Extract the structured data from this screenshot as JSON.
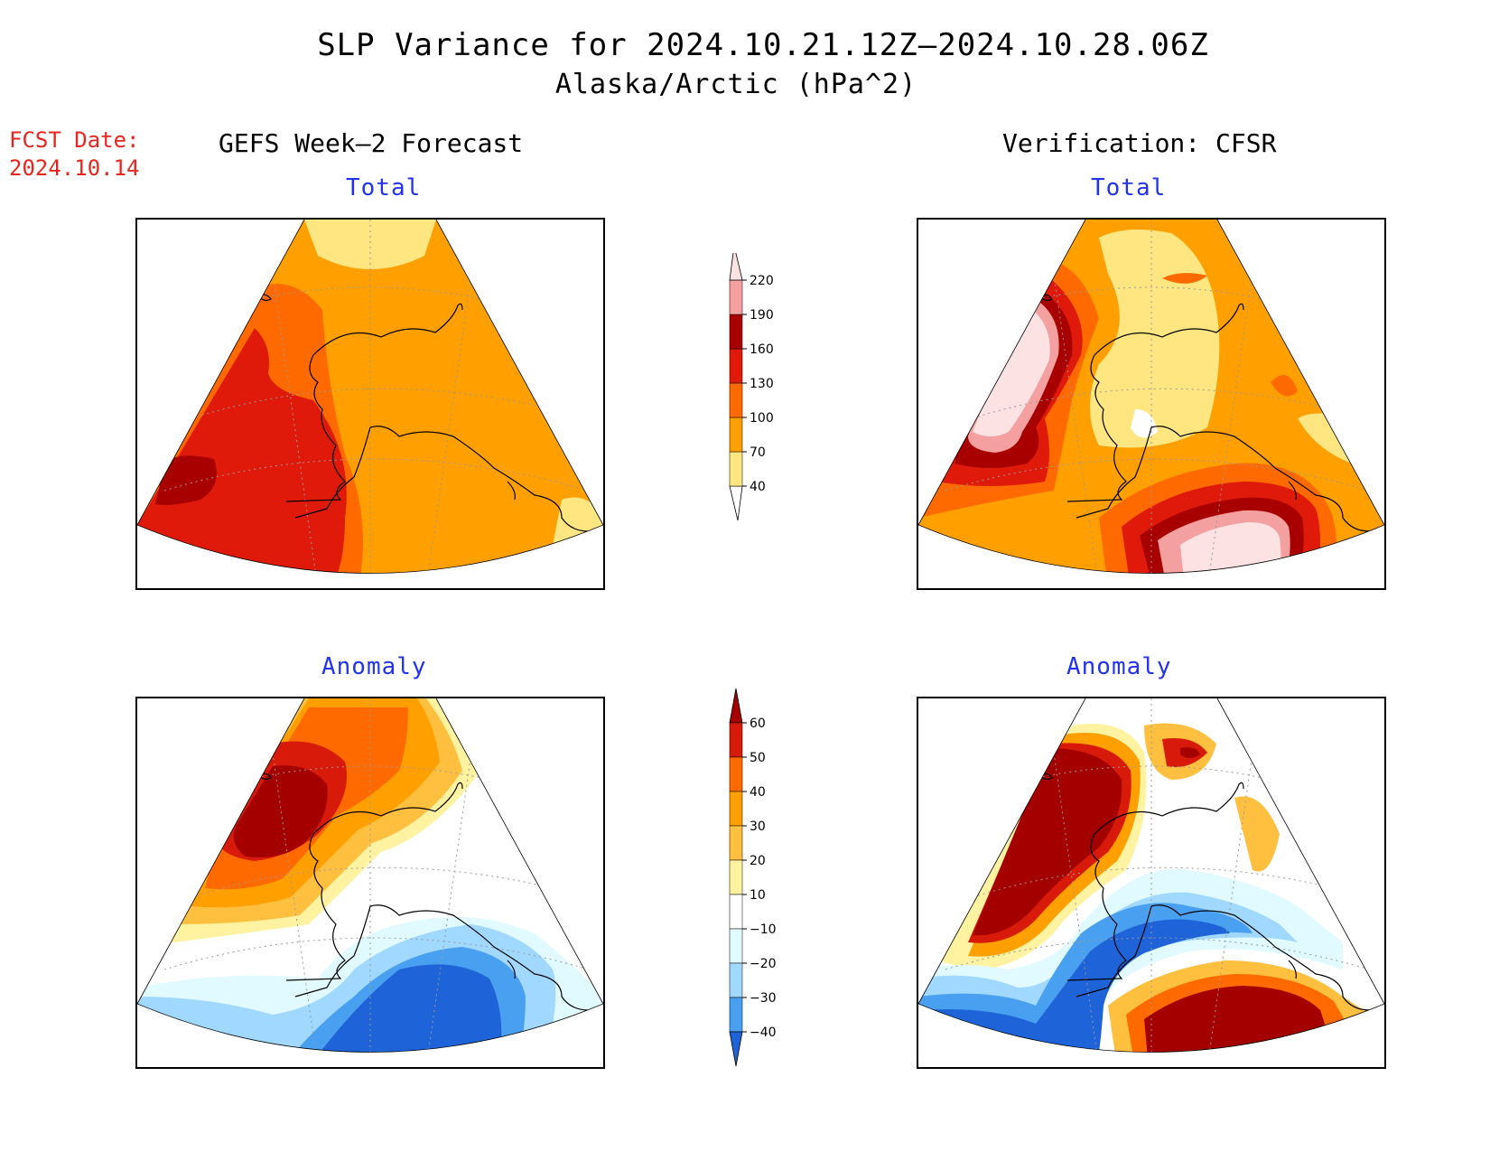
{
  "header": {
    "title": "SLP Variance for 2024.10.21.12Z–2024.10.28.06Z",
    "subtitle": "Alaska/Arctic (hPa^2)"
  },
  "forecast_date": {
    "label": "FCST Date:",
    "value": "2024.10.14"
  },
  "columns": {
    "left": "GEFS Week–2 Forecast",
    "right": "Verification: CFSR"
  },
  "panels": {
    "fc_total": {
      "title": "Total"
    },
    "fc_anomaly": {
      "title": "Anomaly"
    },
    "ver_total": {
      "title": "Total"
    },
    "ver_anomaly": {
      "title": "Anomaly"
    }
  },
  "colorbars": {
    "total": {
      "levels": [
        "40",
        "70",
        "100",
        "130",
        "160",
        "190",
        "220"
      ],
      "colors": [
        "#ffe680",
        "#ffa000",
        "#ff6a00",
        "#e01a0a",
        "#a80000",
        "#f4a0a0",
        "#fce2e2"
      ]
    },
    "anomaly": {
      "levels": [
        "60",
        "50",
        "40",
        "30",
        "20",
        "10",
        "−10",
        "−20",
        "−30",
        "−40"
      ],
      "colors": [
        "#a50000",
        "#d81a0a",
        "#ff6a00",
        "#ffa000",
        "#ffc040",
        "#fff2a0",
        "#ffffff",
        "#e0faff",
        "#a0d8ff",
        "#4aa0f0",
        "#1e64d8"
      ]
    }
  },
  "colors": {
    "coastline": "#000000",
    "title_red": "#e8261f",
    "panel_title_blue": "#2233ee"
  }
}
